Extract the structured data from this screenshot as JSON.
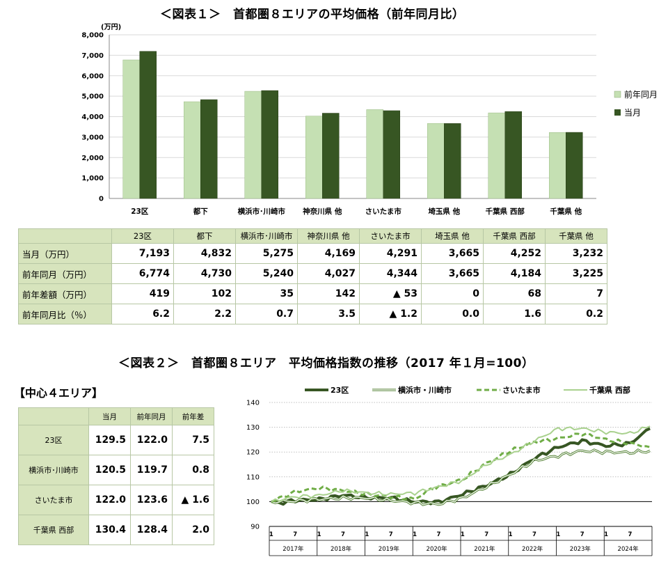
{
  "figure1": {
    "title": "＜図表１＞　首都圏８エリアの平均価格（前年同月比）",
    "unit": "(万円)",
    "legend": [
      "前年同月",
      "当月"
    ],
    "colors": {
      "prev": "#c5e0b3",
      "curr": "#375623"
    },
    "y_ticks": [
      "0",
      "1,000",
      "2,000",
      "3,000",
      "4,000",
      "5,000",
      "6,000",
      "7,000",
      "8,000"
    ],
    "table": {
      "row_labels": [
        "当月（万円）",
        "前年同月（万円）",
        "前年差額（万円）",
        "前年同月比（％）"
      ],
      "rows": [
        [
          "7,193",
          "4,832",
          "5,275",
          "4,169",
          "4,291",
          "3,665",
          "4,252",
          "3,232"
        ],
        [
          "6,774",
          "4,730",
          "5,240",
          "4,027",
          "4,344",
          "3,665",
          "4,184",
          "3,225"
        ],
        [
          "419",
          "102",
          "35",
          "142",
          "▲ 53",
          "0",
          "68",
          "7"
        ],
        [
          "6.2",
          "2.2",
          "0.7",
          "3.5",
          "▲ 1.2",
          "0.0",
          "1.6",
          "0.2"
        ]
      ]
    }
  },
  "chart_data": [
    {
      "type": "bar",
      "categories": [
        "23区",
        "都下",
        "横浜市･川崎市",
        "神奈川県 他",
        "さいたま市",
        "埼玉県 他",
        "千葉県 西部",
        "千葉県 他"
      ],
      "series": [
        {
          "name": "前年同月",
          "values": [
            6774,
            4730,
            5240,
            4027,
            4344,
            3665,
            4184,
            3225
          ]
        },
        {
          "name": "当月",
          "values": [
            7193,
            4832,
            5275,
            4169,
            4291,
            3665,
            4252,
            3232
          ]
        }
      ],
      "ylim": [
        0,
        8000
      ],
      "ylabel": "(万円)"
    },
    {
      "type": "line",
      "start": "2017-01",
      "months": 96,
      "ylim": [
        90,
        140
      ],
      "y_ticks": [
        90,
        100,
        110,
        120,
        130,
        140
      ],
      "x_month_ticks": [
        "1",
        "7"
      ],
      "x_years": [
        "2017年",
        "2018年",
        "2019年",
        "2020年",
        "2021年",
        "2022年",
        "2023年",
        "2024年"
      ],
      "series": [
        {
          "name": "23区",
          "color": "#375623",
          "style": "thick",
          "anchors": [
            [
              0,
              100
            ],
            [
              2,
              99.4
            ],
            [
              6,
              100.5
            ],
            [
              12,
              100.9
            ],
            [
              18,
              102.6
            ],
            [
              24,
              101.6
            ],
            [
              30,
              101.5
            ],
            [
              36,
              100
            ],
            [
              42,
              99.8
            ],
            [
              48,
              103
            ],
            [
              54,
              106.5
            ],
            [
              60,
              111
            ],
            [
              66,
              117.5
            ],
            [
              72,
              122
            ],
            [
              78,
              124.5
            ],
            [
              84,
              122.5
            ],
            [
              90,
              123.5
            ],
            [
              95,
              129.5
            ]
          ]
        },
        {
          "name": "横浜市・川崎市",
          "color": "#548235",
          "style": "double",
          "anchors": [
            [
              0,
              100
            ],
            [
              6,
              100.2
            ],
            [
              12,
              101
            ],
            [
              18,
              101.5
            ],
            [
              24,
              101.5
            ],
            [
              30,
              100.5
            ],
            [
              36,
              99.5
            ],
            [
              42,
              99
            ],
            [
              48,
              101.5
            ],
            [
              54,
              106
            ],
            [
              60,
              111
            ],
            [
              66,
              116.5
            ],
            [
              72,
              118.5
            ],
            [
              78,
              120.5
            ],
            [
              84,
              120
            ],
            [
              90,
              119.8
            ],
            [
              95,
              120.5
            ]
          ]
        },
        {
          "name": "さいたま市",
          "color": "#70ad47",
          "style": "dashed",
          "anchors": [
            [
              0,
              100
            ],
            [
              6,
              104
            ],
            [
              12,
              105.5
            ],
            [
              18,
              104.5
            ],
            [
              24,
              103
            ],
            [
              30,
              102
            ],
            [
              36,
              101
            ],
            [
              40,
              105
            ],
            [
              48,
              109
            ],
            [
              54,
              115.5
            ],
            [
              60,
              120.5
            ],
            [
              66,
              124
            ],
            [
              72,
              125.5
            ],
            [
              78,
              127.5
            ],
            [
              84,
              125
            ],
            [
              90,
              123.5
            ],
            [
              95,
              122
            ]
          ]
        },
        {
          "name": "千葉県 西部",
          "color": "#a9d18e",
          "style": "solid",
          "anchors": [
            [
              0,
              100
            ],
            [
              6,
              102
            ],
            [
              12,
              102.5
            ],
            [
              18,
              104.5
            ],
            [
              24,
              103.5
            ],
            [
              30,
              103
            ],
            [
              36,
              103.5
            ],
            [
              42,
              106
            ],
            [
              48,
              108.5
            ],
            [
              54,
              115
            ],
            [
              60,
              119
            ],
            [
              66,
              124.5
            ],
            [
              72,
              129.5
            ],
            [
              78,
              129.5
            ],
            [
              84,
              128
            ],
            [
              90,
              127.5
            ],
            [
              95,
              130.4
            ]
          ]
        }
      ]
    }
  ],
  "figure2": {
    "title": "＜図表２＞　首都圏８エリア　平均価格指数の推移（2017 年１月=100）",
    "subtitle": "【中心４エリア】",
    "table": {
      "headers": [
        "当月",
        "前年同月",
        "前年差"
      ],
      "rows": [
        {
          "label": "23区",
          "values": [
            "129.5",
            "122.0",
            "7.5"
          ]
        },
        {
          "label": "横浜市･川崎市",
          "values": [
            "120.5",
            "119.7",
            "0.8"
          ]
        },
        {
          "label": "さいたま市",
          "values": [
            "122.0",
            "123.6",
            "▲ 1.6"
          ]
        },
        {
          "label": "千葉県 西部",
          "values": [
            "130.4",
            "128.4",
            "2.0"
          ]
        }
      ]
    }
  }
}
